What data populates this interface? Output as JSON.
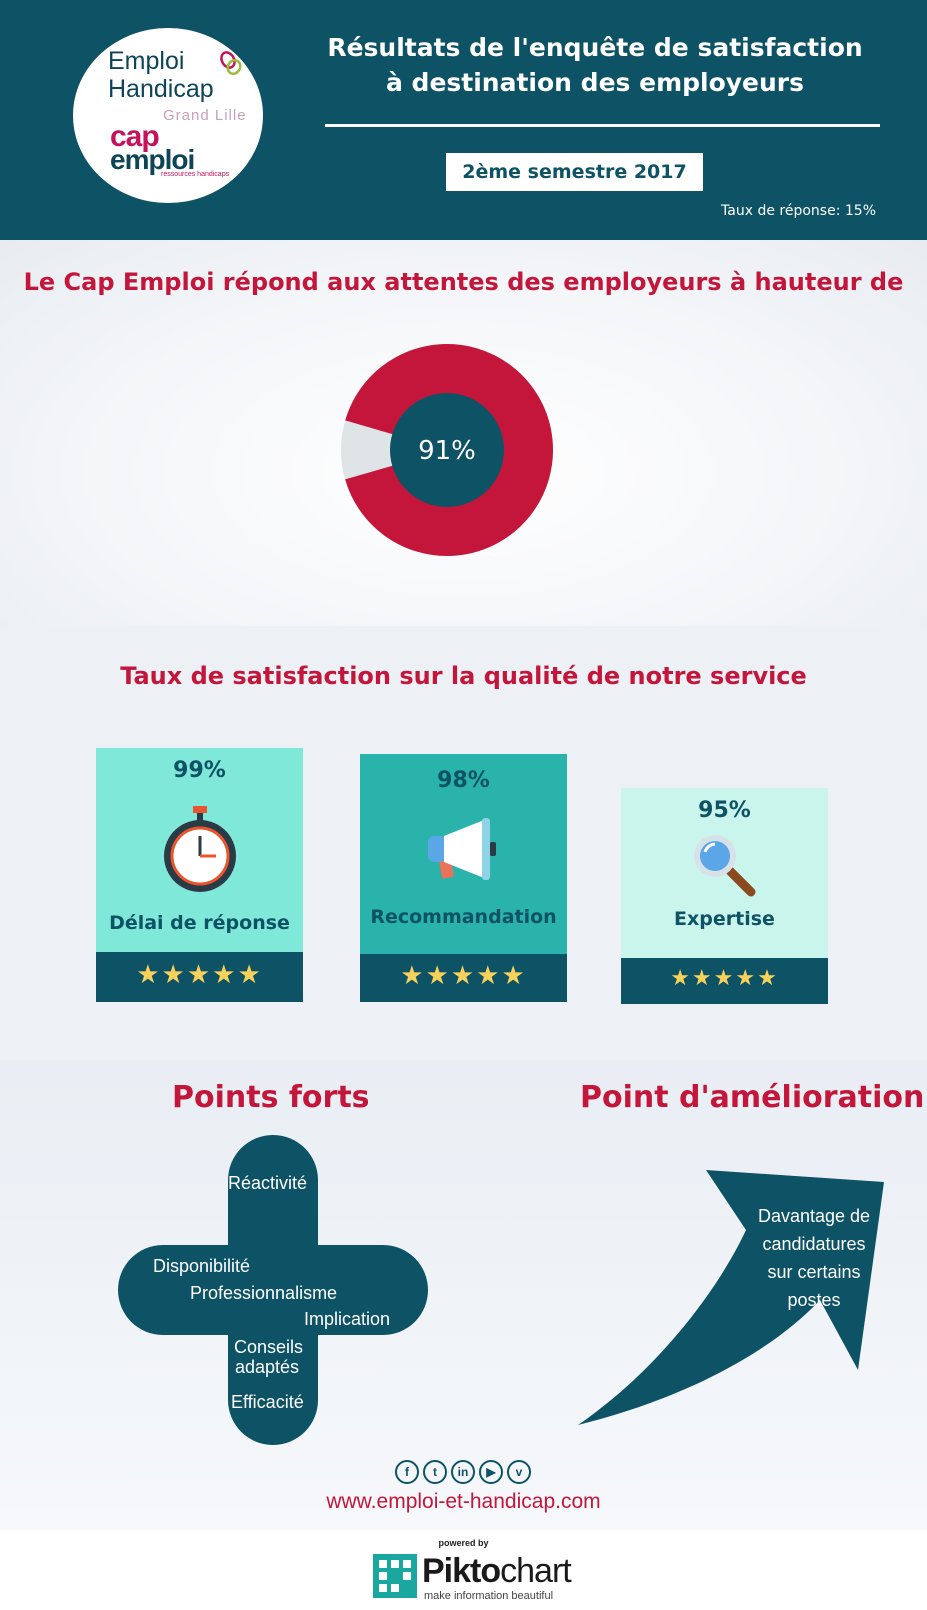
{
  "header": {
    "logo": {
      "line1": "Emploi",
      "line2": "Handicap",
      "line3": "Grand Lille",
      "line4": "cap",
      "line5": "emploi",
      "line6": "ressources handicaps"
    },
    "title_line1": "Résultats de l'enquête de satisfaction",
    "title_line2": "à destination des employeurs",
    "semester": "2ème semestre 2017",
    "response_rate": "Taux de réponse: 15%"
  },
  "expectations": {
    "title": "Le Cap Emploi répond aux attentes des employeurs à hauteur de",
    "donut_label": "91%",
    "donut_value": 91
  },
  "quality": {
    "title": "Taux de satisfaction sur la qualité de notre service",
    "cards": [
      {
        "pct": "99%",
        "label": "Délai de réponse",
        "icon": "stopwatch-icon",
        "stars": "★★★★★",
        "rating": 5
      },
      {
        "pct": "98%",
        "label": "Recommandation",
        "icon": "megaphone-icon",
        "stars": "★★★★★",
        "rating": 5
      },
      {
        "pct": "95%",
        "label": "Expertise",
        "icon": "magnifier-icon",
        "stars": "★★★★★",
        "rating": 5
      }
    ]
  },
  "strengths": {
    "title": "Points forts",
    "items": [
      "Réactivité",
      "Disponibilité",
      "Professionnalisme",
      "Implication",
      "Conseils",
      "adaptés",
      "Efficacité"
    ]
  },
  "improvement": {
    "title": "Point d'amélioration",
    "lines": [
      "Davantage de",
      "candidatures",
      "sur certains",
      "postes"
    ]
  },
  "footer": {
    "socials": [
      "facebook-icon",
      "twitter-icon",
      "linkedin-icon",
      "youtube-icon",
      "viadeo-icon"
    ],
    "social_glyphs": [
      "f",
      "t",
      "in",
      "▶",
      "v"
    ],
    "website": "www.emploi-et-handicap.com",
    "powered_by": "powered by",
    "brand_a": "Pikto",
    "brand_b": "chart",
    "tagline": "make information beautiful"
  },
  "colors": {
    "teal_dark": "#0d5265",
    "red": "#c4163a",
    "card1": "#80e8d8",
    "card2": "#2ab3aa",
    "card3": "#c9f5ec",
    "star": "#f7d15a"
  }
}
